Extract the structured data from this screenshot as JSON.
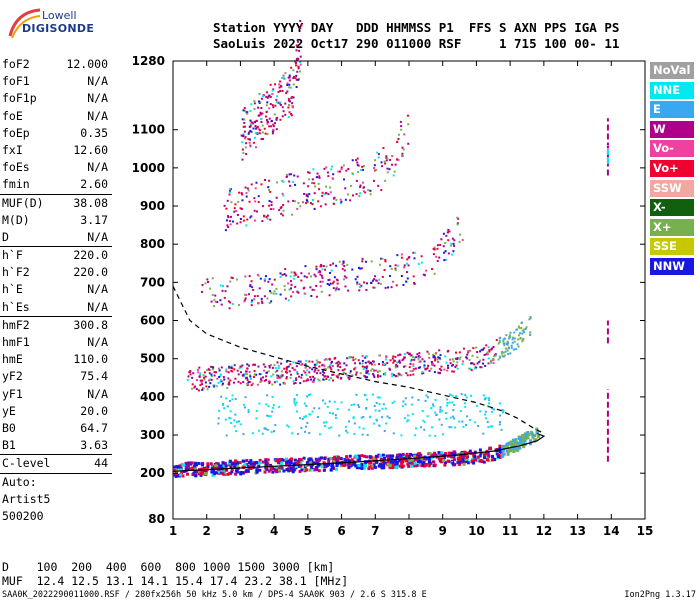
{
  "logo": {
    "line1": "Lowell",
    "line2": "DIGISONDE"
  },
  "header": {
    "line1": "Station YYYY DAY   DDD HHMMSS P1  FFS S AXN PPS IGA PS",
    "line2": "SaoLuis 2022 Oct17 290 011000 RSF     1 715 100 00- 11"
  },
  "params": [
    {
      "k": "foF2",
      "v": "12.000",
      "rule": false
    },
    {
      "k": "foF1",
      "v": "N/A",
      "rule": false
    },
    {
      "k": "foF1p",
      "v": "N/A",
      "rule": false
    },
    {
      "k": "foE",
      "v": "N/A",
      "rule": false
    },
    {
      "k": "foEp",
      "v": "0.35",
      "rule": false
    },
    {
      "k": "fxI",
      "v": "12.60",
      "rule": false
    },
    {
      "k": "foEs",
      "v": "N/A",
      "rule": false
    },
    {
      "k": "fmin",
      "v": "2.60",
      "rule": true
    },
    {
      "k": "MUF(D)",
      "v": "38.08",
      "rule": false
    },
    {
      "k": "M(D)",
      "v": "3.17",
      "rule": false
    },
    {
      "k": "D",
      "v": "N/A",
      "rule": true
    },
    {
      "k": "h`F",
      "v": "220.0",
      "rule": false
    },
    {
      "k": "h`F2",
      "v": "220.0",
      "rule": false
    },
    {
      "k": "h`E",
      "v": "N/A",
      "rule": false
    },
    {
      "k": "h`Es",
      "v": "N/A",
      "rule": true
    },
    {
      "k": "hmF2",
      "v": "300.8",
      "rule": false
    },
    {
      "k": "hmF1",
      "v": "N/A",
      "rule": false
    },
    {
      "k": "hmE",
      "v": "110.0",
      "rule": false
    },
    {
      "k": "yF2",
      "v": "75.4",
      "rule": false
    },
    {
      "k": "yF1",
      "v": "N/A",
      "rule": false
    },
    {
      "k": "yE",
      "v": "20.0",
      "rule": false
    },
    {
      "k": "B0",
      "v": "64.7",
      "rule": false
    },
    {
      "k": "B1",
      "v": "3.63",
      "rule": true
    },
    {
      "k": "C-level",
      "v": "44",
      "rule": true
    }
  ],
  "auto": [
    "Auto:",
    "Artist5",
    "500200"
  ],
  "bottom": {
    "line1": "D    100  200  400  600  800 1000 1500 3000 [km]",
    "line2": "MUF  12.4 12.5 13.1 14.1 15.4 17.4 23.2 38.1 [MHz]",
    "footer_left": "SAA0K_2022290011000.RSF / 280fx256h 50 kHz 5.0 km / DPS-4 SAA0K 903 / 2.6 S 315.8 E",
    "footer_right": "Ion2Png 1.3.17"
  },
  "legend": [
    {
      "label": "NoVal",
      "color": "#a0a0a0"
    },
    {
      "label": "NNE",
      "color": "#00e8f0"
    },
    {
      "label": "E",
      "color": "#3aa8f0"
    },
    {
      "label": "W",
      "color": "#b0008a"
    },
    {
      "label": "Vo-",
      "color": "#f040a0"
    },
    {
      "label": "Vo+",
      "color": "#f00030"
    },
    {
      "label": "SSW",
      "color": "#f0a8a0"
    },
    {
      "label": "X-",
      "color": "#106010"
    },
    {
      "label": "X+",
      "color": "#78b050"
    },
    {
      "label": "SSE",
      "color": "#c8c800"
    },
    {
      "label": "NNW",
      "color": "#1818e0"
    }
  ],
  "chart_data": {
    "type": "scatter",
    "xlabel": "",
    "ylabel": "",
    "xlim": [
      1,
      15
    ],
    "ylim": [
      80,
      1280
    ],
    "x_ticks": [
      "1",
      "2",
      "3",
      "4",
      "5",
      "6",
      "7",
      "8",
      "9",
      "10",
      "11",
      "12",
      "13",
      "14",
      "15"
    ],
    "y_ticks": [
      "80",
      "200",
      "300",
      "400",
      "500",
      "600",
      "700",
      "800",
      "900",
      "1000",
      "1100",
      "1280"
    ],
    "traces": [
      {
        "name": "1st hop",
        "base_h": 205,
        "fmin": 1.0,
        "fmax": 11.8
      },
      {
        "name": "2nd hop",
        "base_h": 435,
        "fmin": 1.4,
        "fmax": 11.6
      },
      {
        "name": "3rd hop",
        "base_h": 650,
        "fmin": 1.8,
        "fmax": 9.6
      },
      {
        "name": "4th hop",
        "base_h": 870,
        "fmin": 2.5,
        "fmax": 8.0
      },
      {
        "name": "5th hop",
        "base_h": 1060,
        "fmin": 3.0,
        "fmax": 4.8
      }
    ],
    "profile_solid": [
      [
        1.0,
        205
      ],
      [
        4.0,
        218
      ],
      [
        6.0,
        227
      ],
      [
        8.0,
        238
      ],
      [
        9.5,
        248
      ],
      [
        10.5,
        258
      ],
      [
        11.3,
        272
      ],
      [
        11.8,
        285
      ],
      [
        12.0,
        297
      ],
      [
        11.8,
        304
      ]
    ],
    "profile_dashed": [
      [
        1.0,
        690
      ],
      [
        1.5,
        600
      ],
      [
        2.0,
        565
      ],
      [
        3.0,
        530
      ],
      [
        4.0,
        505
      ],
      [
        5.0,
        480
      ],
      [
        6.0,
        460
      ],
      [
        7.0,
        440
      ],
      [
        8.0,
        425
      ],
      [
        9.0,
        405
      ],
      [
        10.0,
        385
      ],
      [
        10.7,
        365
      ],
      [
        11.2,
        345
      ],
      [
        11.7,
        318
      ],
      [
        12.0,
        304
      ]
    ]
  }
}
